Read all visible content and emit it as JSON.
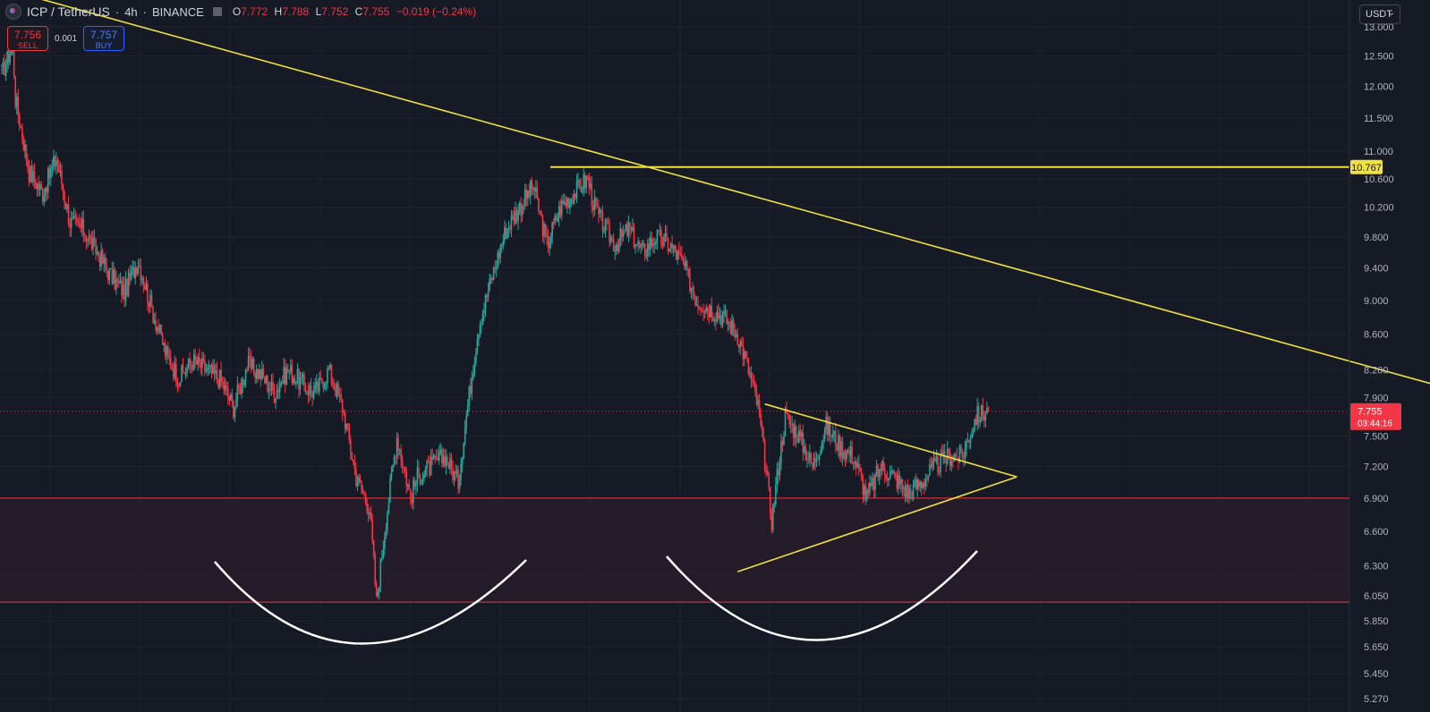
{
  "header": {
    "symbol": "ICP / TetherUS",
    "interval": "4h",
    "exchange": "BINANCE",
    "separator": "·",
    "ohlc": {
      "o_label": "O",
      "o": "7.772",
      "h_label": "H",
      "h": "7.788",
      "l_label": "L",
      "l": "7.752",
      "c_label": "C",
      "c": "7.755",
      "change": "−0.019 (−0.24%)"
    }
  },
  "trade": {
    "sell_price": "7.756",
    "sell_label": "SELL",
    "spread": "0.001",
    "buy_price": "7.757",
    "buy_label": "BUY"
  },
  "currency": {
    "label": "USDT",
    "chevron": "⌄"
  },
  "price_labels": {
    "current_price": "7.755",
    "countdown": "03:44:16",
    "level": "10.767"
  },
  "colors": {
    "background": "#161a25",
    "up": "#26a69a",
    "down": "#f23645",
    "trendline": "#f0e040",
    "zone_fill": "#2a1c2a",
    "zone_border": "#f23645",
    "arc": "#ffffff"
  },
  "chart_data": {
    "type": "candlestick",
    "y_scale": "log",
    "ylim": [
      5.2,
      13.3
    ],
    "y_ticks": [
      "13.000",
      "12.500",
      "12.000",
      "11.500",
      "11.000",
      "10.600",
      "10.200",
      "9.800",
      "9.400",
      "9.000",
      "8.600",
      "8.200",
      "7.900",
      "7.500",
      "7.200",
      "6.900",
      "6.600",
      "6.300",
      "6.050",
      "5.850",
      "5.650",
      "5.450",
      "5.270"
    ],
    "y_tick_values": [
      13.0,
      12.5,
      12.0,
      11.5,
      11.0,
      10.6,
      10.2,
      9.8,
      9.4,
      9.0,
      8.6,
      8.2,
      7.9,
      7.5,
      7.2,
      6.9,
      6.6,
      6.3,
      6.05,
      5.85,
      5.65,
      5.45,
      5.27
    ],
    "candle_count": 365,
    "series": [
      {
        "close_path": [
          [
            0,
            12.2
          ],
          [
            8,
            12.7
          ],
          [
            10,
            11.8
          ],
          [
            20,
            10.7
          ],
          [
            30,
            10.4
          ],
          [
            40,
            10.9
          ],
          [
            50,
            10.0
          ],
          [
            60,
            9.9
          ],
          [
            70,
            9.6
          ],
          [
            80,
            9.3
          ],
          [
            90,
            9.1
          ],
          [
            100,
            9.5
          ],
          [
            110,
            8.9
          ],
          [
            120,
            8.4
          ],
          [
            130,
            8.1
          ],
          [
            140,
            8.3
          ],
          [
            150,
            8.2
          ],
          [
            160,
            8.1
          ],
          [
            170,
            7.8
          ],
          [
            180,
            8.25
          ],
          [
            190,
            8.15
          ],
          [
            200,
            7.95
          ],
          [
            210,
            8.2
          ],
          [
            220,
            8.05
          ],
          [
            230,
            7.95
          ],
          [
            240,
            8.2
          ],
          [
            250,
            7.8
          ],
          [
            260,
            7.1
          ],
          [
            270,
            6.8
          ],
          [
            275,
            6.0
          ],
          [
            282,
            6.7
          ],
          [
            290,
            7.5
          ],
          [
            300,
            6.9
          ],
          [
            305,
            7.1
          ],
          [
            315,
            7.2
          ],
          [
            325,
            7.3
          ],
          [
            335,
            7.05
          ],
          [
            340,
            7.6
          ],
          [
            350,
            8.7
          ],
          [
            360,
            9.3
          ],
          [
            370,
            9.9
          ],
          [
            380,
            10.2
          ],
          [
            390,
            10.5
          ],
          [
            400,
            9.7
          ],
          [
            410,
            10.2
          ],
          [
            420,
            10.4
          ],
          [
            430,
            10.6
          ],
          [
            435,
            10.2
          ],
          [
            440,
            10.0
          ],
          [
            450,
            9.7
          ],
          [
            460,
            9.9
          ],
          [
            470,
            9.6
          ],
          [
            480,
            9.8
          ],
          [
            490,
            9.7
          ],
          [
            500,
            9.45
          ],
          [
            510,
            9.0
          ],
          [
            520,
            8.9
          ],
          [
            530,
            8.8
          ],
          [
            540,
            8.6
          ],
          [
            548,
            8.2
          ],
          [
            555,
            7.8
          ],
          [
            565,
            6.7
          ],
          [
            575,
            7.7
          ],
          [
            585,
            7.5
          ],
          [
            595,
            7.2
          ],
          [
            605,
            7.6
          ],
          [
            615,
            7.4
          ],
          [
            625,
            7.3
          ],
          [
            635,
            6.9
          ],
          [
            645,
            7.2
          ],
          [
            655,
            7.1
          ],
          [
            665,
            6.95
          ],
          [
            675,
            7.05
          ],
          [
            685,
            7.2
          ],
          [
            695,
            7.3
          ],
          [
            705,
            7.3
          ],
          [
            715,
            7.7
          ],
          [
            724,
            7.755
          ]
        ]
      }
    ],
    "horizontal_level": 10.767,
    "current_price": 7.755,
    "support_zone": [
      6.0,
      6.9
    ],
    "trendlines": [
      {
        "name": "descending-resistance",
        "from": [
          0,
          13.7
        ],
        "to": [
          1598,
          8.05
        ]
      },
      {
        "name": "triangle-upper",
        "from": [
          560,
          7.83
        ],
        "to": [
          745,
          7.1
        ]
      },
      {
        "name": "triangle-lower",
        "from": [
          540,
          6.25
        ],
        "to": [
          745,
          7.1
        ]
      }
    ],
    "annotations": [
      "rounded-bottom-left",
      "rounded-bottom-right"
    ]
  }
}
